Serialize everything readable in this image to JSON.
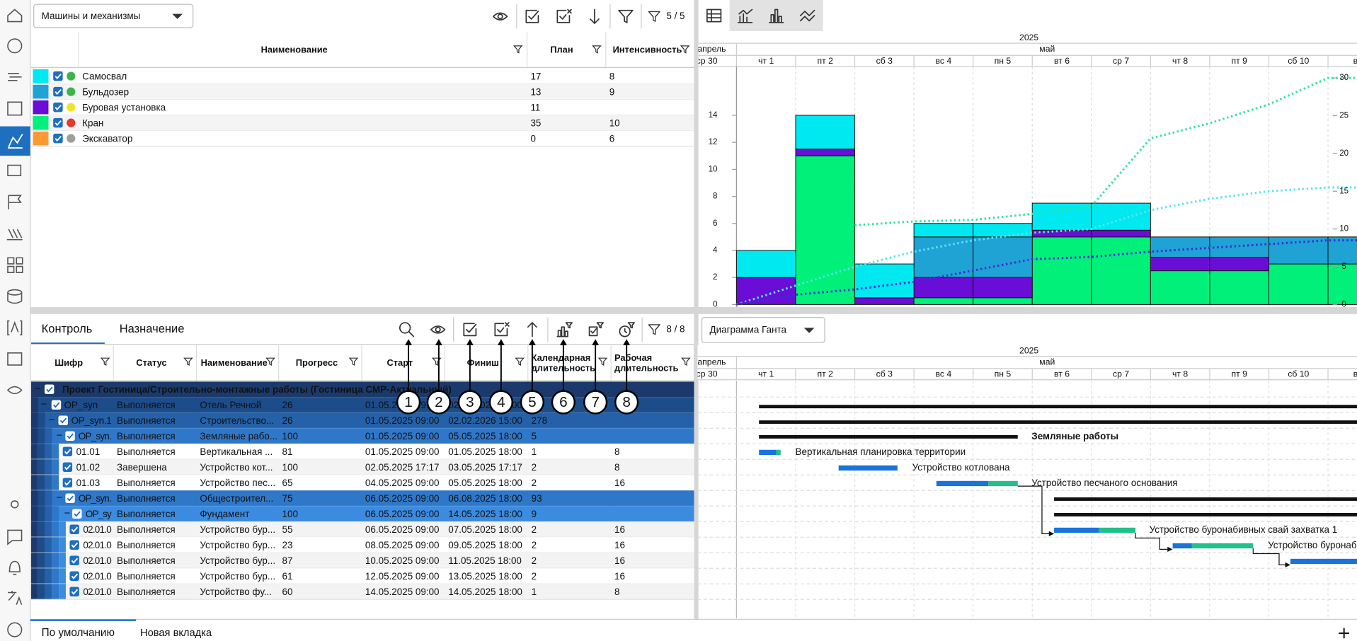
{
  "top_table": {
    "dropdown": "Машины и механизмы",
    "filter_count": "5 / 5",
    "columns": [
      "Наименование",
      "План",
      "Интенсивность"
    ],
    "rows": [
      {
        "name": "Самосвал",
        "plan": 17,
        "intensity": 8,
        "swatch": "#00e8f0",
        "status": "#3cb44b"
      },
      {
        "name": "Бульдозер",
        "plan": 13,
        "intensity": 9,
        "swatch": "#1fa3d5",
        "status": "#3cb44b"
      },
      {
        "name": "Буровая установка",
        "plan": 11,
        "swatch": "#6a0dd6",
        "status": "#f5e133"
      },
      {
        "name": "Кран",
        "plan": 35,
        "intensity": 10,
        "swatch": "#00f07a",
        "status": "#e8372c"
      },
      {
        "name": "Экскаватор",
        "plan": 0,
        "intensity": 6,
        "swatch": "#ff9933",
        "status": "#9e9e9e"
      }
    ]
  },
  "timeline": {
    "year": "2025",
    "months": [
      "апрель",
      "май"
    ],
    "days": [
      "ср 30",
      "чт 1",
      "пт 2",
      "сб 3",
      "вс 4",
      "пн 5",
      "вт 6",
      "ср 7",
      "чт 8",
      "пт 9",
      "сб 10",
      "вс"
    ]
  },
  "resource_chart": {
    "type": "bar",
    "stacked": true,
    "ylim": [
      0,
      17.6
    ],
    "yticks": [
      0,
      2,
      4,
      6,
      8,
      10,
      12,
      14
    ],
    "y2lim": [
      0,
      31.5
    ],
    "y2ticks": [
      0,
      5,
      10,
      15,
      20,
      25,
      30
    ],
    "series": [
      {
        "color": "#00f07a",
        "values": [
          null,
          0,
          11,
          0,
          0.5,
          0.5,
          5,
          5,
          2.5,
          2.5,
          3,
          3
        ]
      },
      {
        "color": "#6a0dd6",
        "values": [
          null,
          2,
          0.5,
          0.5,
          1.5,
          1.5,
          0.5,
          0.5,
          1,
          1,
          0,
          0
        ]
      },
      {
        "color": "#1fa3d5",
        "values": [
          null,
          0,
          0,
          0,
          3,
          3,
          0,
          0,
          1.5,
          1.5,
          2,
          2
        ]
      },
      {
        "color": "#00e8f0",
        "values": [
          null,
          2,
          2.5,
          2.5,
          1,
          1,
          2,
          2,
          0,
          0,
          0,
          0
        ]
      }
    ],
    "lines": [
      {
        "color": "#2fe59a",
        "axis": "y2",
        "values": [
          null,
          null,
          10.5,
          11,
          11.2,
          12,
          13,
          22,
          24,
          26.5,
          30,
          30
        ]
      },
      {
        "color": "#55e6f0",
        "axis": "y2",
        "values": [
          0,
          2.5,
          5,
          7,
          8.5,
          9.5,
          10,
          12.5,
          14,
          15,
          15.5,
          15.5
        ]
      },
      {
        "color": "#3a2fd6",
        "axis": "y2",
        "values": [
          0,
          1.3,
          2,
          3,
          4.5,
          6,
          6.3,
          7,
          7.5,
          8,
          8.5,
          8.5
        ]
      }
    ]
  },
  "bottom_panel": {
    "tabs": [
      "Контроль",
      "Назначение"
    ],
    "filter_count": "8 / 8",
    "callouts": [
      "1",
      "2",
      "3",
      "4",
      "5",
      "6",
      "7",
      "8"
    ],
    "columns": [
      "Шифр",
      "Статус",
      "Наименование",
      "Прогресс",
      "Старт",
      "Финиш",
      "Календарная длительность",
      "Рабочая длительность"
    ],
    "group": "Проект Гостиница/Строительно-монтажные работы (Гостиница СМР-Актуальный)",
    "rows": [
      {
        "code": "OP_syn",
        "status": "Выполняется",
        "name": "Отель Речной",
        "progress": 26,
        "start": "01.05.2025 09:00",
        "finish": "02.02.2026 15:00"
      },
      {
        "code": "OP_syn.1",
        "status": "Выполняется",
        "name": "Строительство...",
        "progress": 26,
        "start": "01.05.2025 09:00",
        "finish": "02.02.2026 15:00",
        "calendar": 278
      },
      {
        "code": "OP_syn.",
        "status": "Выполняется",
        "name": "Земляные рабо...",
        "progress": 100,
        "start": "01.05.2025 09:00",
        "finish": "05.05.2025 18:00",
        "calendar": 5
      },
      {
        "code": "01.01",
        "status": "Выполняется",
        "name": "Вертикальная ...",
        "progress": 81,
        "start": "01.05.2025 09:00",
        "finish": "01.05.2025 18:00",
        "calendar": 1,
        "work": 8
      },
      {
        "code": "01.02",
        "status": "Завершена",
        "name": "Устройство кот...",
        "progress": 100,
        "start": "02.05.2025 17:17",
        "finish": "03.05.2025 17:17",
        "calendar": 2,
        "work": 8
      },
      {
        "code": "01.03",
        "status": "Выполняется",
        "name": "Устройство пес...",
        "progress": 65,
        "start": "04.05.2025 09:00",
        "finish": "05.05.2025 18:00",
        "calendar": 2,
        "work": 16
      },
      {
        "code": "OP_syn.",
        "status": "Выполняется",
        "name": "Общестроител...",
        "progress": 75,
        "start": "06.05.2025 09:00",
        "finish": "06.08.2025 18:00",
        "calendar": 93
      },
      {
        "code": "OP_sy",
        "status": "Выполняется",
        "name": "Фундамент",
        "progress": 100,
        "start": "06.05.2025 09:00",
        "finish": "14.05.2025 18:00",
        "calendar": 9
      },
      {
        "code": "02.01.0",
        "status": "Выполняется",
        "name": "Устройство бур...",
        "progress": 55,
        "start": "06.05.2025 09:00",
        "finish": "07.05.2025 18:00",
        "calendar": 2,
        "work": 16
      },
      {
        "code": "02.01.0",
        "status": "Выполняется",
        "name": "Устройство бур...",
        "progress": 23,
        "start": "08.05.2025 09:00",
        "finish": "09.05.2025 18:00",
        "calendar": 2,
        "work": 16
      },
      {
        "code": "02.01.0",
        "status": "Выполняется",
        "name": "Устройство бур...",
        "progress": 87,
        "start": "10.05.2025 09:00",
        "finish": "11.05.2025 18:00",
        "calendar": 2,
        "work": 16
      },
      {
        "code": "02.01.0",
        "status": "Выполняется",
        "name": "Устройство бур...",
        "progress": 61,
        "start": "12.05.2025 09:00",
        "finish": "13.05.2025 18:00",
        "calendar": 2,
        "work": 16
      },
      {
        "code": "02.01.0",
        "status": "Выполняется",
        "name": "Устройство фу...",
        "progress": 60,
        "start": "14.05.2025 09:00",
        "finish": "14.05.2025 18:00",
        "calendar": 1,
        "work": 8
      }
    ]
  },
  "gantt": {
    "dropdown": "Диаграмма Ганта",
    "labels": [
      "Земляные работы",
      "Вертикальная планировка территории",
      "Устройство котлована",
      "Устройство песчаного основания",
      "Устройство буронабивных свай захватка 1",
      "Устройство буронаби"
    ]
  },
  "bottom_tabs": [
    "По умолчанию",
    "Новая вкладка"
  ]
}
